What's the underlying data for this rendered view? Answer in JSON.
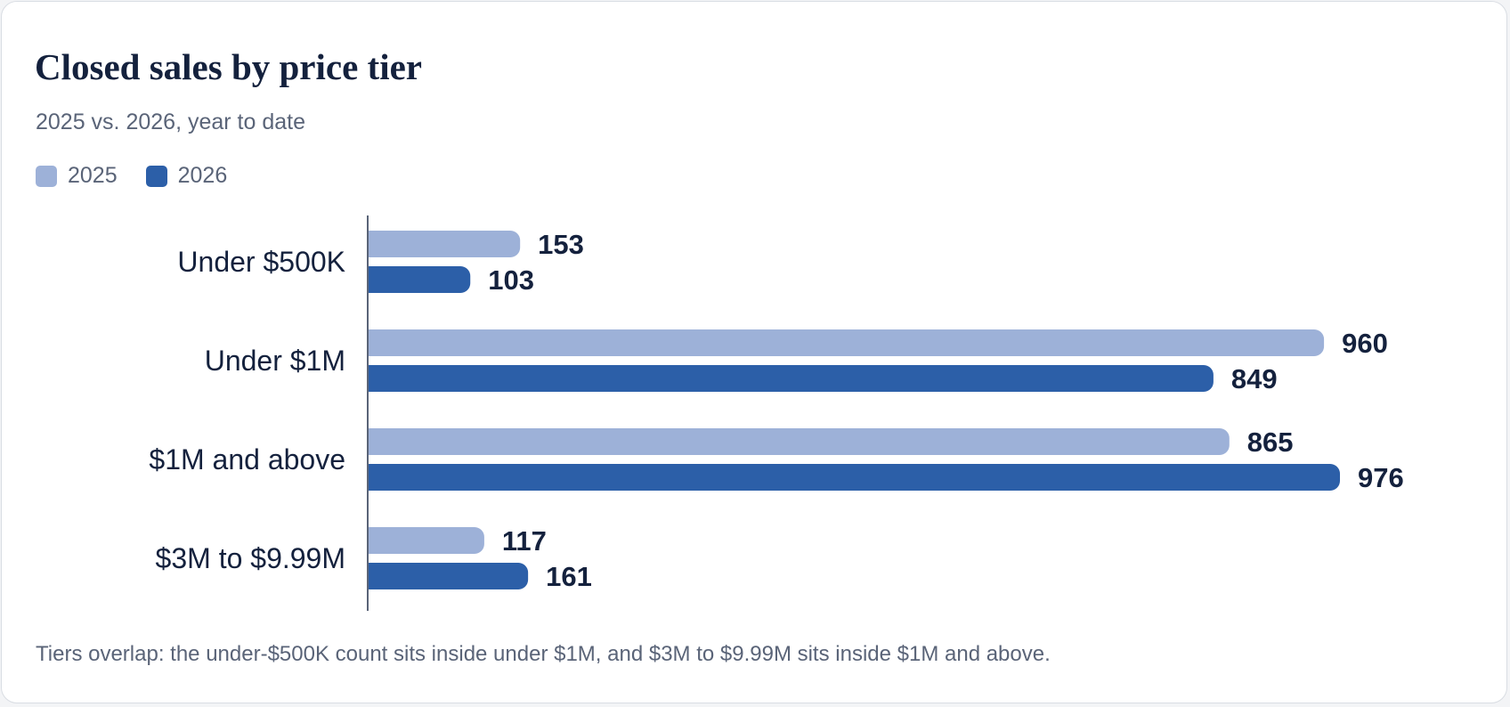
{
  "chart_data": {
    "type": "bar",
    "orientation": "horizontal",
    "title": "Closed sales by price tier",
    "subtitle": "2025 vs. 2026, year to date",
    "categories": [
      "Under $500K",
      "Under $1M",
      "$1M and above",
      "$3M to $9.99M"
    ],
    "series": [
      {
        "name": "2025",
        "color": "#9db1d8",
        "values": [
          153,
          960,
          865,
          117
        ]
      },
      {
        "name": "2026",
        "color": "#2c5fa8",
        "values": [
          103,
          849,
          976,
          161
        ]
      }
    ],
    "xlim": [
      0,
      976
    ],
    "grid": false,
    "legend_position": "top-left",
    "data_labels": true,
    "footnote": "Tiers overlap: the under-$500K count sits inside under $1M, and $3M to $9.99M sits inside $1M and above."
  },
  "colors": {
    "text_primary": "#14213d",
    "text_secondary": "#5a6478",
    "axis": "#5a6478"
  }
}
